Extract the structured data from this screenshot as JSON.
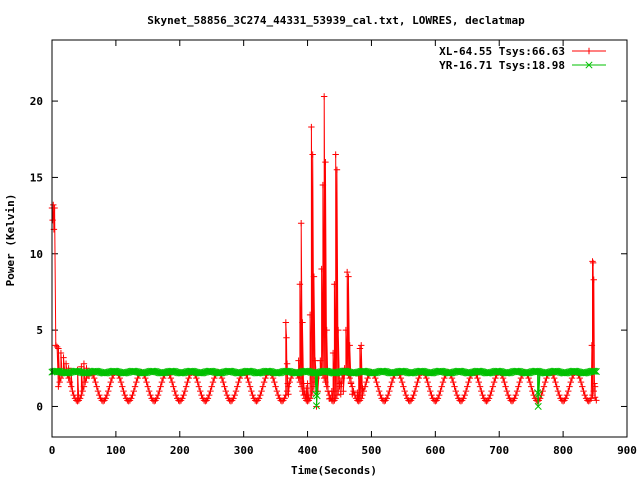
{
  "chart_data": {
    "type": "line",
    "title": "Skynet_58856_3C274_44331_53939_cal.txt, LOWRES, declatmap",
    "xlabel": "Time(Seconds)",
    "ylabel": "Power (Kelvin)",
    "xlim": [
      0,
      900
    ],
    "ylim": [
      -2,
      24
    ],
    "xticks": [
      0,
      100,
      200,
      300,
      400,
      500,
      600,
      700,
      800,
      900
    ],
    "yticks": [
      0,
      5,
      10,
      15,
      20
    ],
    "legend_position": "top-right",
    "series": [
      {
        "name": "XL-64.55 Tsys:66.63",
        "color": "#ff0000",
        "marker": "plus",
        "baseline": {
          "x_start": 10,
          "x_end": 850,
          "center": 1.3,
          "amplitude": 0.95,
          "period": 40
        },
        "x": [
          0,
          1,
          2,
          3,
          4,
          6,
          8,
          10,
          14,
          18,
          22,
          26,
          30,
          40,
          46,
          50,
          54,
          58,
          366,
          367,
          368,
          369,
          370,
          386,
          388,
          390,
          392,
          394,
          396,
          398,
          400,
          404,
          406,
          408,
          410,
          412,
          414,
          416,
          420,
          422,
          424,
          426,
          428,
          430,
          432,
          434,
          438,
          440,
          442,
          444,
          446,
          448,
          450,
          452,
          456,
          458,
          460,
          462,
          464,
          466,
          468,
          470,
          478,
          480,
          482,
          484,
          486,
          845,
          846,
          847,
          848,
          849,
          850,
          852
        ],
        "y": [
          13,
          12.2,
          13.2,
          11.6,
          13.0,
          4.0,
          3.9,
          3.8,
          3.5,
          3.2,
          2.8,
          2.5,
          2.2,
          2.4,
          2.6,
          2.8,
          2.5,
          2.0,
          5.5,
          4.5,
          2.8,
          1.5,
          0.8,
          3.0,
          8.0,
          12.0,
          5.5,
          1.5,
          0.8,
          1.2,
          1.5,
          6.0,
          18.3,
          16.5,
          8.5,
          3.0,
          0.0,
          1.0,
          3.0,
          9.0,
          14.5,
          20.3,
          16.0,
          5.0,
          1.0,
          0.5,
          1.0,
          3.5,
          8.0,
          16.5,
          15.5,
          5.0,
          1.5,
          0.8,
          1.0,
          2.5,
          5.0,
          8.8,
          8.5,
          4.0,
          1.5,
          0.8,
          0.9,
          2.0,
          3.8,
          4.0,
          1.2,
          4.0,
          9.5,
          9.4,
          8.3,
          1.5,
          0.6,
          0.4
        ]
      },
      {
        "name": "YR-16.71 Tsys:18.98",
        "color": "#00c000",
        "marker": "cross",
        "baseline": {
          "x_start": 0,
          "x_end": 852,
          "center": 2.25,
          "amplitude": 0.06,
          "period": 30
        },
        "x": [
          413,
          414,
          415,
          760,
          761,
          762
        ],
        "y": [
          0.8,
          0.05,
          0.7,
          0.9,
          0.0,
          0.8
        ]
      }
    ]
  }
}
